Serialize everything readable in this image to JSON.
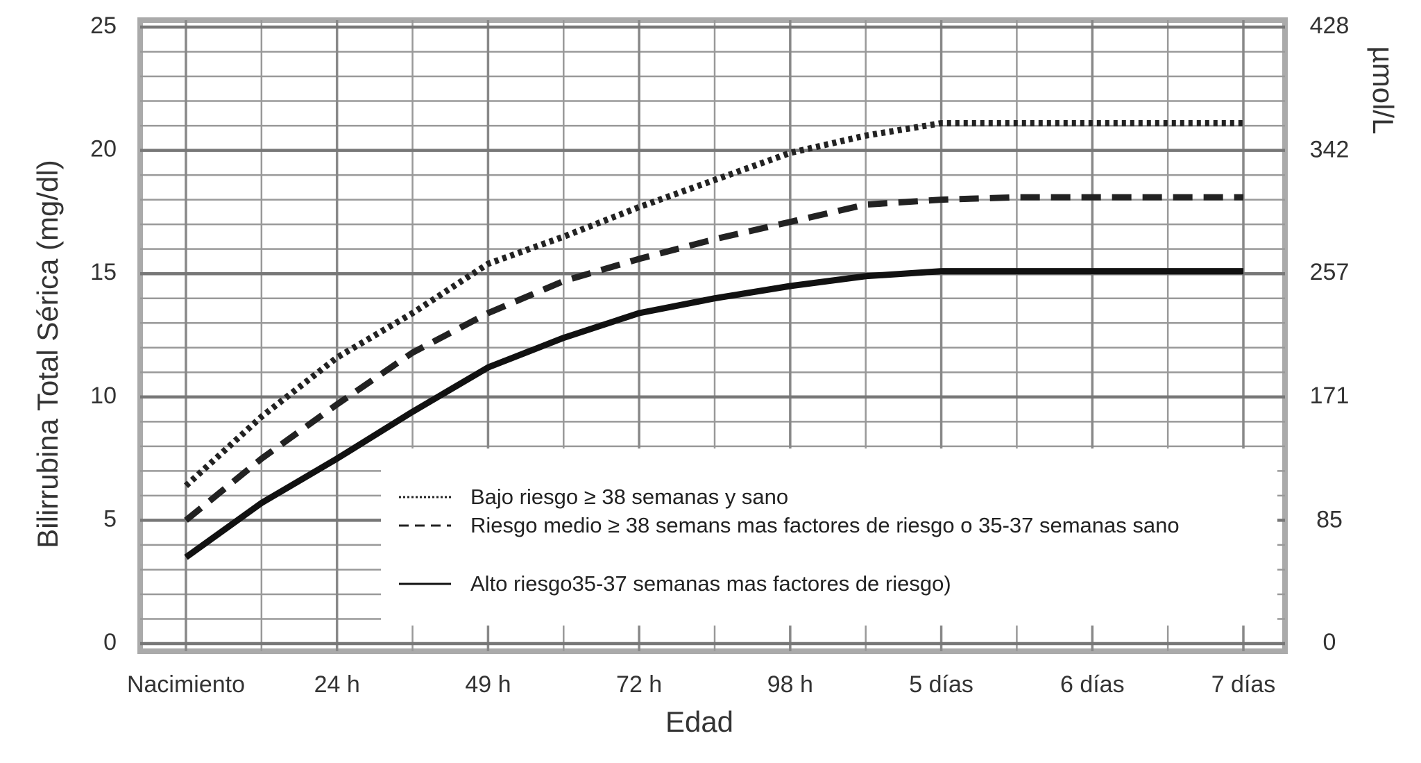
{
  "chart_data": {
    "type": "line",
    "ylabel": "Bilirrubina Total Sérica (mg/dl)",
    "xlabel": "Edad",
    "y2label": "µmol/L",
    "categories": [
      "Nacimiento",
      null,
      "24 h",
      null,
      "49 h",
      null,
      "72 h",
      null,
      "98 h",
      null,
      "5 días",
      null,
      "6 días",
      null,
      "7 días"
    ],
    "ylim": [
      0,
      25
    ],
    "yticks": [
      0,
      5,
      10,
      15,
      20,
      25
    ],
    "y2lim": [
      0,
      428
    ],
    "y2ticks": [
      0,
      85,
      171,
      257,
      342,
      428
    ],
    "grid": true,
    "series": [
      {
        "name": "Bajo riesgo  ≥ 38 semanas y sano",
        "color": "#222",
        "dash": "dotted",
        "values": [
          6.4,
          9.2,
          11.6,
          13.4,
          15.4,
          16.5,
          17.7,
          18.8,
          19.9,
          20.6,
          21.1,
          21.1,
          21.1,
          21.1,
          21.1
        ]
      },
      {
        "name": "Riesgo medio  ≥ 38 semans mas factores de riesgo o 35-37 semanas sano",
        "color": "#222",
        "dash": "dashed",
        "values": [
          5.0,
          7.5,
          9.7,
          11.8,
          13.4,
          14.7,
          15.6,
          16.4,
          17.1,
          17.8,
          18.0,
          18.1,
          18.1,
          18.1,
          18.1
        ]
      },
      {
        "name": "Alto riesgo35-37 semanas  mas factores de riesgo)",
        "color": "#111",
        "dash": "solid",
        "values": [
          3.5,
          5.7,
          7.5,
          9.4,
          11.2,
          12.4,
          13.4,
          14.0,
          14.5,
          14.9,
          15.1,
          15.1,
          15.1,
          15.1,
          15.1
        ]
      }
    ]
  }
}
